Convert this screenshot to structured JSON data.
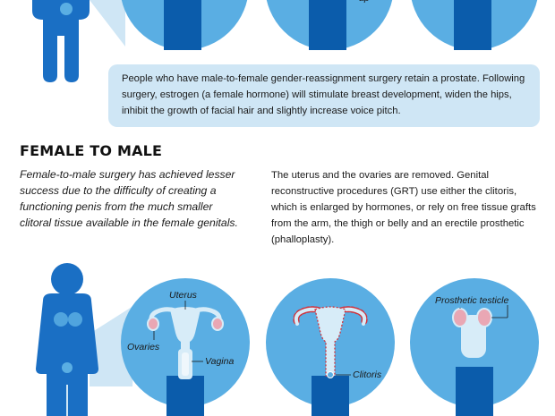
{
  "top_section": {
    "partial_label": "ap",
    "info_text": "People who have male-to-female gender-reassignment surgery retain a prostate. Following surgery, estrogen (a female hormone) will stimulate breast development, widen the hips, inhibit the growth of facial hair and slightly increase voice pitch."
  },
  "female_to_male": {
    "title": "FEMALE TO MALE",
    "intro": "Female-to-male surgery has achieved lesser success due to the difficulty of creating a functioning penis from the much smaller clitoral tissue available in the female genitals.",
    "description": "The uterus and the ovaries are removed. Genital reconstructive procedures (GRT) use either the clitoris, which is enlarged by hormones, or rely on free tissue grafts from the arm, the thigh or belly and an erectile prosthetic (phalloplasty).",
    "labels": {
      "uterus": "Uterus",
      "ovaries": "Ovaries",
      "vagina": "Vagina",
      "clitoris": "Clitoris",
      "prosthetic_testicle": "Prosthetic testicle"
    }
  },
  "colors": {
    "body_blue": "#1a6fc4",
    "circle_blue": "#5aaee3",
    "dark_blue": "#0b5cab",
    "pale_blue": "#cfe6f5",
    "organ_light": "#d7ecf8",
    "pink": "#e9a7b4",
    "red_dash": "#d0323c"
  }
}
